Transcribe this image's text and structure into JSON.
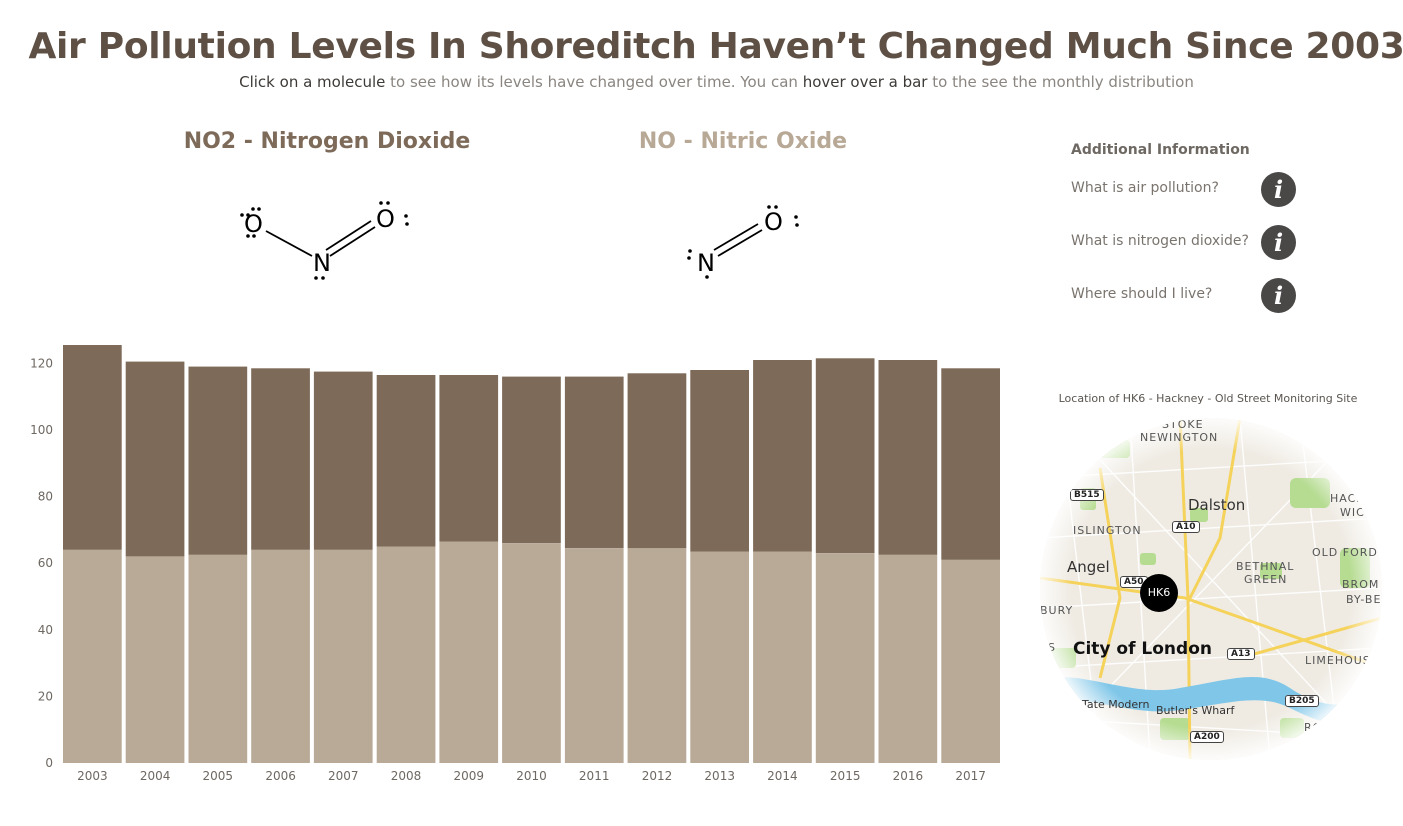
{
  "title": "Air Pollution Levels In Shoreditch Haven’t Changed Much Since 2003",
  "subtitle": {
    "part1": "Click on a molecule",
    "part2": " to see how its levels have changed over time. You can ",
    "part3": "hover over a bar",
    "part4": " to the see the monthly distribution"
  },
  "molecules": {
    "no2": {
      "title": "NO2 - Nitrogen Dioxide",
      "atoms": {
        "o_left": "O",
        "n": "N",
        "o_right": "O"
      }
    },
    "no": {
      "title": "NO - Nitric Oxide",
      "atoms": {
        "n": "N",
        "o": "O"
      }
    }
  },
  "info": {
    "heading": "Additional Information",
    "items": [
      {
        "label": "What is air pollution?",
        "icon": "info-icon",
        "icon_glyph": "i"
      },
      {
        "label": "What is nitrogen dioxide?",
        "icon": "info-icon",
        "icon_glyph": "i"
      },
      {
        "label": "Where should I live?",
        "icon": "info-icon",
        "icon_glyph": "i"
      }
    ]
  },
  "map": {
    "caption": "Location of HK6 - Hackney - Old Street Monitoring Site",
    "marker": "HK6",
    "labels": {
      "stoke": "STOKE",
      "newington": "NEWINGTON",
      "dalston": "Dalston",
      "islington": "ISLINGTON",
      "hackney": "HACKNEY",
      "wick": "WICK",
      "old_ford": "OLD FORD",
      "angel": "Angel",
      "bethnal": "BETHNAL",
      "green": "GREEN",
      "brom": "BROM",
      "by_be": "BY-BE",
      "bury": "BURY",
      "city": "City of London",
      "limehouse": "LIMEHOUSE",
      "tate": "Tate Modern",
      "butlers": "Butler's Wharf",
      "rotherhithe": "ROTHERHI",
      "es": "ES"
    },
    "roads": {
      "b515": "B515",
      "a10": "A10",
      "a50": "A50",
      "a13": "A13",
      "b205": "B205",
      "a200": "A200"
    },
    "colors": {
      "water": "#7fc6e8",
      "park": "#b6dc92",
      "land": "#efebe3",
      "road": "#f5d25a"
    }
  },
  "colors": {
    "no2": "#7d6a58",
    "no": "#b8aa97",
    "axis_text": "#6e6862",
    "marker": "#000000"
  },
  "chart_data": {
    "type": "bar",
    "stacked": true,
    "categories": [
      "2003",
      "2004",
      "2005",
      "2006",
      "2007",
      "2008",
      "2009",
      "2010",
      "2011",
      "2012",
      "2013",
      "2014",
      "2015",
      "2016",
      "2017"
    ],
    "series": [
      {
        "name": "NO - Nitric Oxide",
        "values": [
          64,
          62,
          62.5,
          64,
          64,
          65,
          66.5,
          66,
          64.5,
          64.5,
          63.5,
          63.5,
          63,
          62.5,
          61
        ]
      },
      {
        "name": "NO2 - Nitrogen Dioxide",
        "values": [
          61.5,
          58.5,
          56.5,
          54.5,
          53.5,
          51.5,
          50,
          50,
          51.5,
          52.5,
          54.5,
          57.5,
          58.5,
          58.5,
          57.5
        ]
      }
    ],
    "yticks": [
      0,
      20,
      40,
      60,
      80,
      100,
      120
    ],
    "ylim": [
      0,
      127
    ],
    "title": "",
    "xlabel": "",
    "ylabel": ""
  }
}
